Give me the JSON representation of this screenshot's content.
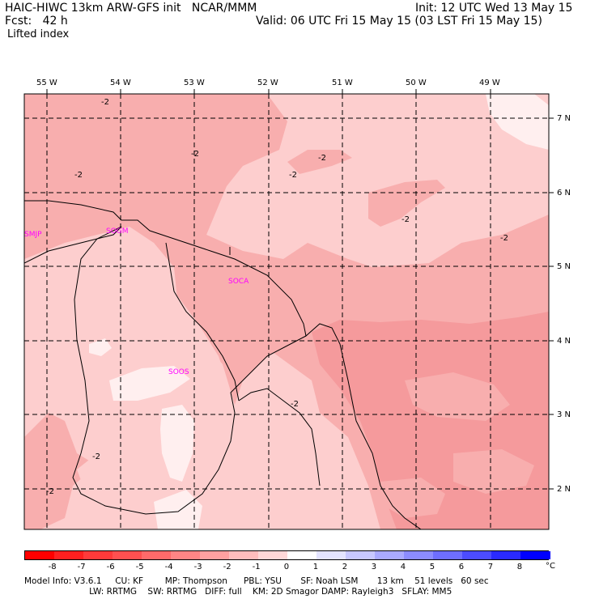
{
  "header": {
    "left_line1": "HAIC-HIWC 13km ARW-GFS init   NCAR/MMM",
    "left_line2": "Fcst:   42 h",
    "right_line1": "Init: 12 UTC Wed 13 May 15",
    "right_line2": "Valid: 06 UTC Fri 15 May 15 (03 LST Fri 15 May 15)",
    "field": "Lifted index"
  },
  "lon_labels": [
    "55 W",
    "54 W",
    "53 W",
    "52 W",
    "51 W",
    "50 W",
    "49 W"
  ],
  "lat_labels": [
    "7 N",
    "6 N",
    "5 N",
    "4 N",
    "3 N",
    "2 N"
  ],
  "stations": [
    "SMJP",
    "SOGM",
    "SOCA",
    "SOOS"
  ],
  "contour_label": "-2",
  "colorbar": {
    "ticks": [
      "-8",
      "-7",
      "-6",
      "-5",
      "-4",
      "-3",
      "-2",
      "-1",
      "0",
      "1",
      "2",
      "3",
      "4",
      "5",
      "6",
      "7",
      "8"
    ],
    "unit": "°C",
    "colors": [
      "#ff0000",
      "#ff2020",
      "#ff3a3a",
      "#ff5050",
      "#ff6a6a",
      "#ff8585",
      "#ffa0a0",
      "#ffbdbd",
      "#ffd8d8",
      "#ffffff",
      "#e4e4ff",
      "#c8c8ff",
      "#aaaaff",
      "#8c8cff",
      "#6e6eff",
      "#4c4cff",
      "#2a2aff",
      "#0000ff"
    ]
  },
  "map_colors": {
    "band_neg3": "#f59a9c",
    "band_neg2": "#f8aeae",
    "band_neg1": "#fdcece",
    "band_0": "#ffefef"
  },
  "model_info": {
    "line1": "Model Info: V3.6.1     CU: KF        MP: Thompson      PBL: YSU       SF: Noah LSM       13 km    51 levels   60 sec",
    "line2": "                        LW: RRTMG    SW: RRTMG   DIFF: full    KM: 2D Smagor DAMP: Rayleigh3   SFLAY: MM5"
  }
}
